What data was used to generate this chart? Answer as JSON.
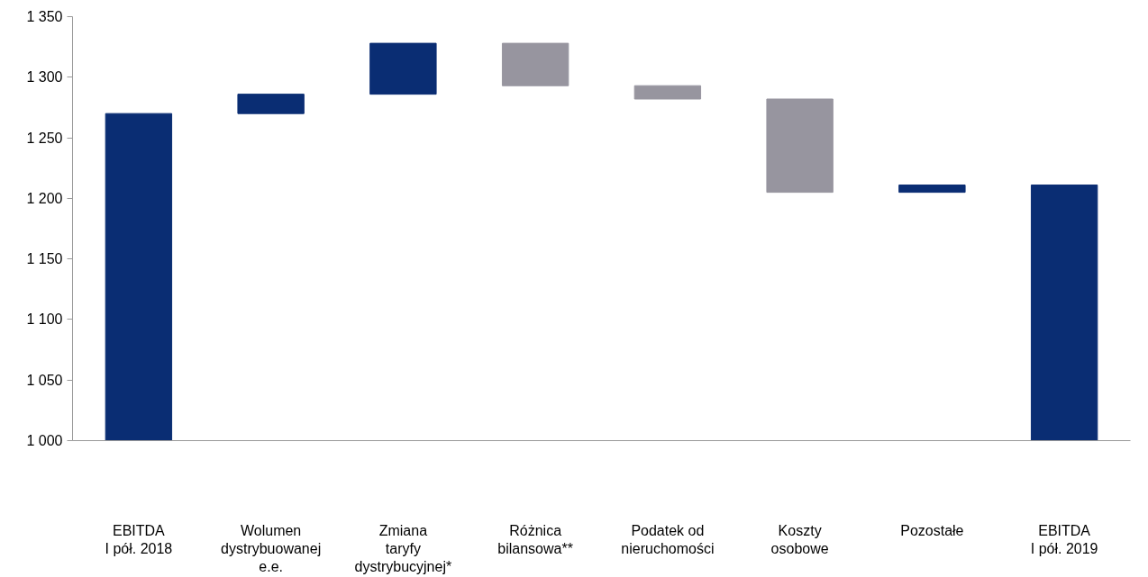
{
  "chart_data": {
    "type": "bar",
    "categories": [
      "EBITDA\nI pół. 2018",
      "Wolumen\ndystrybuowanej\ne.e.",
      "Zmiana\ntaryfy\ndystrybucyjnej*",
      "Różnica\nbilansowa**",
      "Podatek od\nnieruchomości",
      "Koszty\nosobowe",
      "Pozostałe",
      "EBITDA\nI pół. 2019"
    ],
    "values": [
      270,
      16,
      42,
      -35,
      -11,
      -77,
      6,
      211
    ],
    "base": [
      1000,
      1270,
      1286,
      1328,
      1293,
      1282,
      1205,
      1000
    ],
    "colors": [
      "#0a2d73",
      "#0a2d73",
      "#0a2d73",
      "#97959f",
      "#97959f",
      "#97959f",
      "#0a2d73",
      "#0a2d73"
    ],
    "ylim": [
      1000,
      1350
    ],
    "yticks": [
      {
        "value": 1000,
        "label": "1 000"
      },
      {
        "value": 1050,
        "label": "1 050"
      },
      {
        "value": 1100,
        "label": "1 100"
      },
      {
        "value": 1150,
        "label": "1 150"
      },
      {
        "value": 1200,
        "label": "1 200"
      },
      {
        "value": 1250,
        "label": "1 250"
      },
      {
        "value": 1300,
        "label": "1 300"
      },
      {
        "value": 1350,
        "label": "1 350"
      }
    ],
    "grid": false
  }
}
